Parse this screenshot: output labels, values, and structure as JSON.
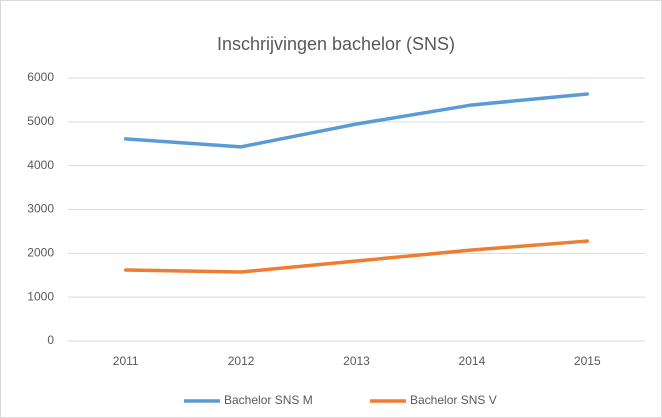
{
  "chart_data": {
    "type": "line",
    "title": "Inschrijvingen bachelor (SNS)",
    "categories": [
      "2011",
      "2012",
      "2013",
      "2014",
      "2015"
    ],
    "series": [
      {
        "name": "Bachelor SNS M",
        "color": "#5b9bd5",
        "values": [
          4610,
          4430,
          4950,
          5385,
          5635
        ]
      },
      {
        "name": "Bachelor SNS V",
        "color": "#ed7d31",
        "values": [
          1620,
          1575,
          1825,
          2075,
          2280
        ]
      }
    ],
    "ylim": [
      0,
      6000
    ],
    "yticks": [
      0,
      1000,
      2000,
      3000,
      4000,
      5000,
      6000
    ],
    "grid": true,
    "legend": "bottom"
  }
}
